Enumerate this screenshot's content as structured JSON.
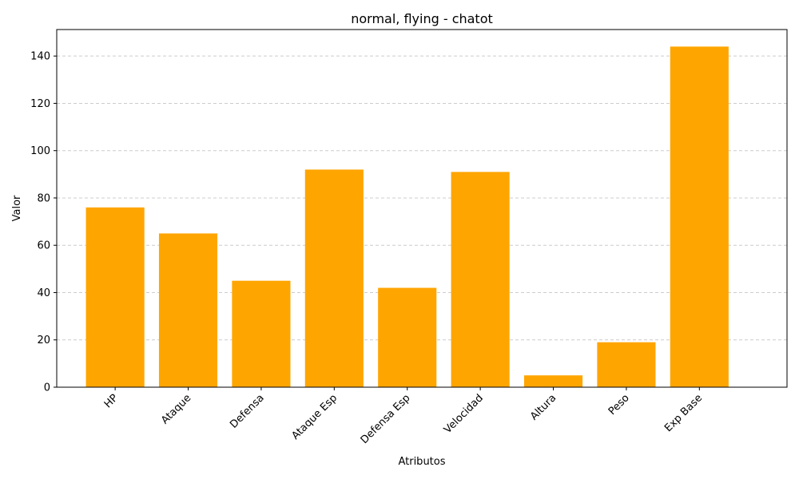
{
  "chart_data": {
    "type": "bar",
    "title": "normal, flying - chatot",
    "xlabel": "Atributos",
    "ylabel": "Valor",
    "categories": [
      "HP",
      "Ataque",
      "Defensa",
      "Ataque Esp",
      "Defensa Esp",
      "Velocidad",
      "Altura",
      "Peso",
      "Exp Base"
    ],
    "values": [
      76,
      65,
      45,
      92,
      42,
      91,
      5,
      19,
      144
    ],
    "ylim": [
      0,
      151.2
    ],
    "yticks": [
      0,
      20,
      40,
      60,
      80,
      100,
      120,
      140
    ],
    "bar_color": "#FFA500",
    "grid": "y-dashed",
    "grid_color": "#cccccc",
    "xtick_rotation": "45deg"
  }
}
